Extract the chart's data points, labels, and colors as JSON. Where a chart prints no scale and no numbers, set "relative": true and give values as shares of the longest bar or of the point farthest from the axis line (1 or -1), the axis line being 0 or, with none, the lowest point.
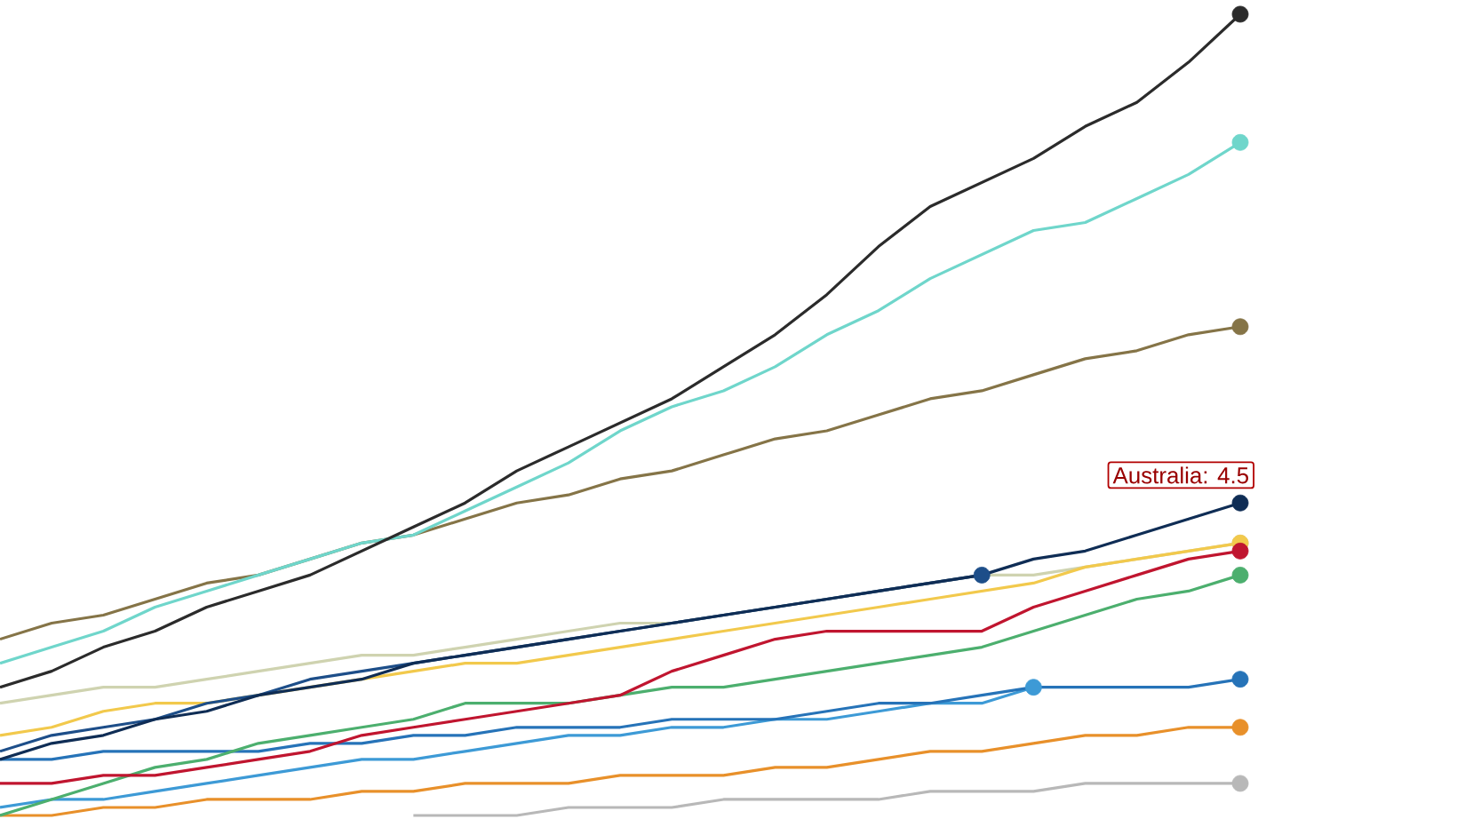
{
  "chart_data": {
    "type": "line",
    "relative": true,
    "categories": [
      null,
      null,
      null,
      null,
      null,
      null,
      null,
      null,
      null,
      null,
      null,
      null,
      null,
      null,
      null,
      null,
      null,
      null,
      null,
      null,
      null,
      null,
      null,
      null,
      null
    ],
    "annotations": [
      {
        "text": "Australia: 4.5",
        "y": 0.33
      }
    ],
    "series": [
      {
        "color": "#b8b8b8",
        "values": [
          null,
          null,
          null,
          null,
          null,
          null,
          null,
          null,
          0.0,
          0.0,
          0.0,
          0.01,
          0.01,
          0.01,
          0.02,
          0.02,
          0.02,
          0.02,
          0.03,
          0.03,
          0.03,
          0.04,
          0.04,
          0.04,
          0.04
        ]
      },
      {
        "color": "#e8902a",
        "values": [
          0.0,
          0.0,
          0.01,
          0.01,
          0.02,
          0.02,
          0.02,
          0.03,
          0.03,
          0.04,
          0.04,
          0.04,
          0.05,
          0.05,
          0.05,
          0.06,
          0.06,
          0.07,
          0.08,
          0.08,
          0.09,
          0.1,
          0.1,
          0.11,
          0.11
        ]
      },
      {
        "color": "#3d9ad6",
        "values": [
          0.01,
          0.02,
          0.02,
          0.03,
          0.04,
          0.05,
          0.06,
          0.07,
          0.07,
          0.08,
          0.09,
          0.1,
          0.1,
          0.11,
          0.11,
          0.12,
          0.12,
          0.13,
          0.14,
          0.14,
          0.16,
          null,
          null,
          null,
          null
        ]
      },
      {
        "color": "#2673b8",
        "values": [
          0.07,
          0.07,
          0.08,
          0.08,
          0.08,
          0.08,
          0.09,
          0.09,
          0.1,
          0.1,
          0.11,
          0.11,
          0.11,
          0.12,
          0.12,
          0.12,
          0.13,
          0.14,
          0.14,
          0.15,
          0.16,
          0.16,
          0.16,
          0.16,
          0.17
        ]
      },
      {
        "color": "#4caf6e",
        "values": [
          0.0,
          0.02,
          0.04,
          0.06,
          0.07,
          0.09,
          0.1,
          0.11,
          0.12,
          0.14,
          0.14,
          0.14,
          0.15,
          0.16,
          0.16,
          0.17,
          0.18,
          0.19,
          0.2,
          0.21,
          0.23,
          0.25,
          0.27,
          0.28,
          0.3
        ]
      },
      {
        "color": "#cfd3b0",
        "values": [
          0.14,
          0.15,
          0.16,
          0.16,
          0.17,
          0.18,
          0.19,
          0.2,
          0.2,
          0.21,
          0.22,
          0.23,
          0.24,
          0.24,
          0.25,
          0.26,
          0.27,
          0.28,
          0.29,
          0.3,
          0.3,
          0.31,
          0.32,
          0.33,
          0.34
        ]
      },
      {
        "color": "#f2c94c",
        "values": [
          0.1,
          0.11,
          0.13,
          0.14,
          0.14,
          0.15,
          0.16,
          0.17,
          0.18,
          0.19,
          0.19,
          0.2,
          0.21,
          0.22,
          0.23,
          0.24,
          0.25,
          0.26,
          0.27,
          0.28,
          0.29,
          0.31,
          0.32,
          0.33,
          0.34
        ]
      },
      {
        "color": "#1d4e89",
        "values": [
          0.08,
          0.1,
          0.11,
          0.12,
          0.14,
          0.15,
          0.17,
          0.18,
          0.19,
          0.2,
          0.21,
          0.22,
          0.23,
          0.24,
          0.25,
          0.26,
          0.27,
          0.28,
          0.29,
          0.3,
          null,
          null,
          null,
          null,
          null
        ]
      },
      {
        "color": "#0f2d55",
        "values": [
          0.07,
          0.09,
          0.1,
          0.12,
          0.13,
          0.15,
          0.16,
          0.17,
          0.19,
          0.2,
          0.21,
          0.22,
          0.23,
          0.24,
          0.25,
          0.26,
          0.27,
          0.28,
          0.29,
          0.3,
          0.32,
          0.33,
          0.35,
          0.37,
          0.39
        ]
      },
      {
        "color": "#857447",
        "values": [
          0.22,
          0.24,
          0.25,
          0.27,
          0.29,
          0.3,
          0.32,
          0.34,
          0.35,
          0.37,
          0.39,
          0.4,
          0.42,
          0.43,
          0.45,
          0.47,
          0.48,
          0.5,
          0.52,
          0.53,
          0.55,
          0.57,
          0.58,
          0.6,
          0.61
        ]
      },
      {
        "color": "#6fd6cb",
        "values": [
          0.19,
          0.21,
          0.23,
          0.26,
          0.28,
          0.3,
          0.32,
          0.34,
          0.35,
          0.38,
          0.41,
          0.44,
          0.48,
          0.51,
          0.53,
          0.56,
          0.6,
          0.63,
          0.67,
          0.7,
          0.73,
          0.74,
          0.77,
          0.8,
          0.84
        ]
      },
      {
        "color": "#2b2b2b",
        "values": [
          0.16,
          0.18,
          0.21,
          0.23,
          0.26,
          0.28,
          0.3,
          0.33,
          0.36,
          0.39,
          0.43,
          0.46,
          0.49,
          0.52,
          0.56,
          0.6,
          0.65,
          0.71,
          0.76,
          0.79,
          0.82,
          0.86,
          0.89,
          0.94,
          1.0
        ]
      },
      {
        "color": "#c0152f",
        "values": [
          0.04,
          0.04,
          0.05,
          0.05,
          0.06,
          0.07,
          0.08,
          0.1,
          0.11,
          0.12,
          0.13,
          0.14,
          0.15,
          0.18,
          0.2,
          0.22,
          0.23,
          0.23,
          0.23,
          0.23,
          0.26,
          0.28,
          0.3,
          0.32,
          0.33
        ]
      }
    ]
  }
}
